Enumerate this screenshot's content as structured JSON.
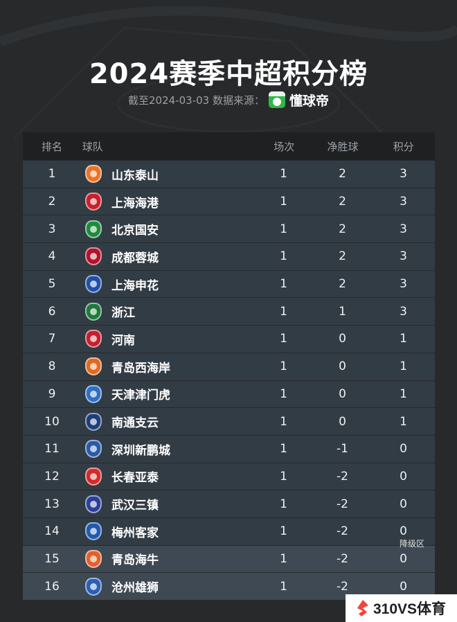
{
  "title": "2024赛季中超积分榜",
  "subtitle": {
    "date_source": "截至2024-03-03 数据来源：",
    "source_name": "懂球帝"
  },
  "columns": {
    "rank": "排名",
    "team": "球队",
    "played": "场次",
    "goal_diff": "净胜球",
    "points": "积分"
  },
  "rows": [
    {
      "rank": "1",
      "team": "山东泰山",
      "played": "1",
      "goal_diff": "2",
      "points": "3",
      "badge_color": "#e8742a"
    },
    {
      "rank": "2",
      "team": "上海海港",
      "played": "1",
      "goal_diff": "2",
      "points": "3",
      "badge_color": "#c8202a"
    },
    {
      "rank": "3",
      "team": "北京国安",
      "played": "1",
      "goal_diff": "2",
      "points": "3",
      "badge_color": "#1e8a3c"
    },
    {
      "rank": "4",
      "team": "成都蓉城",
      "played": "1",
      "goal_diff": "2",
      "points": "3",
      "badge_color": "#b3122a"
    },
    {
      "rank": "5",
      "team": "上海申花",
      "played": "1",
      "goal_diff": "2",
      "points": "3",
      "badge_color": "#1f4fa8"
    },
    {
      "rank": "6",
      "team": "浙江",
      "played": "1",
      "goal_diff": "1",
      "points": "3",
      "badge_color": "#1d7a3a"
    },
    {
      "rank": "7",
      "team": "河南",
      "played": "1",
      "goal_diff": "0",
      "points": "1",
      "badge_color": "#c3202d"
    },
    {
      "rank": "8",
      "team": "青岛西海岸",
      "played": "1",
      "goal_diff": "0",
      "points": "1",
      "badge_color": "#e06a22"
    },
    {
      "rank": "9",
      "team": "天津津门虎",
      "played": "1",
      "goal_diff": "0",
      "points": "1",
      "badge_color": "#2f6fc4"
    },
    {
      "rank": "10",
      "team": "南通支云",
      "played": "1",
      "goal_diff": "0",
      "points": "1",
      "badge_color": "#1c3f7a"
    },
    {
      "rank": "11",
      "team": "深圳新鹏城",
      "played": "1",
      "goal_diff": "-1",
      "points": "0",
      "badge_color": "#2a5aa8"
    },
    {
      "rank": "12",
      "team": "长春亚泰",
      "played": "1",
      "goal_diff": "-2",
      "points": "0",
      "badge_color": "#d42a2a"
    },
    {
      "rank": "13",
      "team": "武汉三镇",
      "played": "1",
      "goal_diff": "-2",
      "points": "0",
      "badge_color": "#2c3f9a"
    },
    {
      "rank": "14",
      "team": "梅州客家",
      "played": "1",
      "goal_diff": "-2",
      "points": "0",
      "badge_color": "#1f5ab0"
    },
    {
      "rank": "15",
      "team": "青岛海牛",
      "played": "1",
      "goal_diff": "-2",
      "points": "0",
      "badge_color": "#e2612a"
    },
    {
      "rank": "16",
      "team": "沧州雄狮",
      "played": "1",
      "goal_diff": "-2",
      "points": "0",
      "badge_color": "#2a5fb4"
    }
  ],
  "relegation_label": "降级区",
  "watermark": "310VS体育",
  "colors": {
    "background": "#27292b",
    "row": "#323c45",
    "relegation_row": "#3e4954",
    "source_green": "#2fb84a",
    "watermark_accent": "#f0463c"
  }
}
